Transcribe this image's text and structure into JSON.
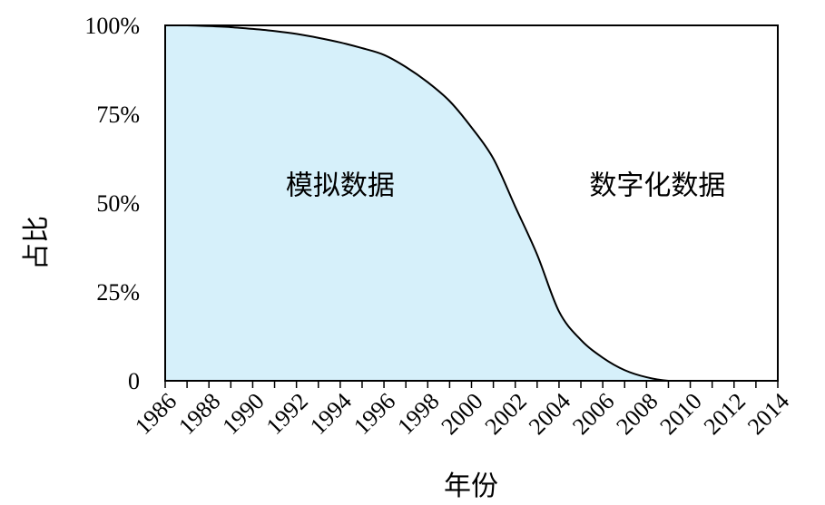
{
  "chart_data": {
    "type": "area",
    "title": "",
    "xlabel": "年份",
    "ylabel": "占比",
    "xlim": [
      1986,
      2014
    ],
    "ylim": [
      0,
      100
    ],
    "x_ticks": [
      "1986",
      "1988",
      "1990",
      "1992",
      "1994",
      "1996",
      "1998",
      "2000",
      "2002",
      "2004",
      "2006",
      "2008",
      "2010",
      "2012",
      "2014"
    ],
    "y_ticks": [
      {
        "value": 0,
        "label": "0"
      },
      {
        "value": 25,
        "label": "25%"
      },
      {
        "value": 50,
        "label": "50%"
      },
      {
        "value": 75,
        "label": "75%"
      },
      {
        "value": 100,
        "label": "100%"
      }
    ],
    "series": [
      {
        "name": "模拟数据",
        "x": [
          1986,
          1987,
          1988,
          1989,
          1990,
          1991,
          1992,
          1993,
          1994,
          1995,
          1996,
          1997,
          1998,
          1999,
          2000,
          2001,
          2002,
          2003,
          2004,
          2005,
          2006,
          2007,
          2008,
          2009,
          2010,
          2011,
          2012,
          2013,
          2014
        ],
        "values": [
          100,
          100,
          99.8,
          99.5,
          99,
          98.4,
          97.6,
          96.5,
          95.2,
          93.6,
          91.7,
          88.3,
          84,
          78.7,
          71.3,
          62.5,
          49,
          35.5,
          19.5,
          11.5,
          6.5,
          3,
          1,
          0,
          0,
          0,
          0,
          0,
          0
        ],
        "color": "#d6f0fa"
      }
    ],
    "annotations": [
      {
        "text": "模拟数据",
        "x": 1994,
        "y": 55
      },
      {
        "text": "数字化数据",
        "x": 2008.5,
        "y": 55
      }
    ],
    "fill_color": "#d6f0fa",
    "line_color": "#000000",
    "grid": false,
    "legend": "none"
  }
}
